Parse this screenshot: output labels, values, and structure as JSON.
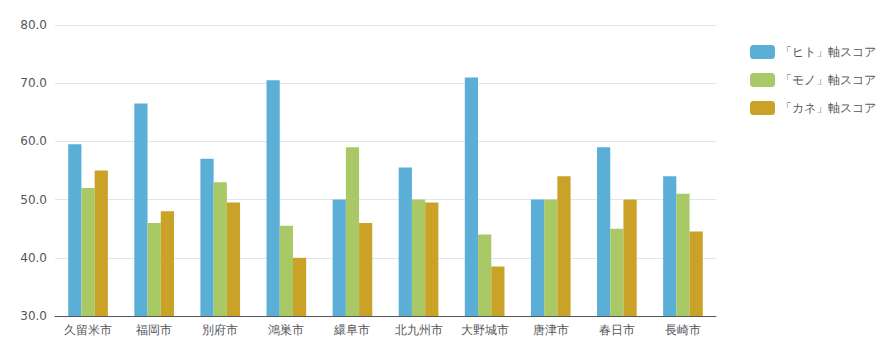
{
  "chart_data": {
    "type": "bar",
    "categories": [
      "久留米市",
      "福岡市",
      "別府市",
      "鴻巣市",
      "繯阜市",
      "北九州市",
      "大野城市",
      "唐津市",
      "春日市",
      "長崎市"
    ],
    "series": [
      {
        "name": "「ヒト」軸スコア",
        "color": "#5bafd6",
        "values": [
          59.5,
          66.5,
          57.0,
          70.5,
          50.0,
          55.5,
          71.0,
          50.0,
          59.0,
          54.0
        ]
      },
      {
        "name": "「モノ」軸スコア",
        "color": "#a8c966",
        "values": [
          52.0,
          46.0,
          53.0,
          45.5,
          59.0,
          50.0,
          44.0,
          50.0,
          45.0,
          51.0
        ]
      },
      {
        "name": "「カネ」軸スコア",
        "color": "#c9a227",
        "values": [
          55.0,
          48.0,
          49.5,
          40.0,
          46.0,
          49.5,
          38.5,
          54.0,
          50.0,
          44.5
        ]
      }
    ],
    "ylim": [
      30,
      80
    ],
    "yticks": [
      {
        "value": 30,
        "label": "30.0"
      },
      {
        "value": 40,
        "label": "40.0"
      },
      {
        "value": 50,
        "label": "50.0"
      },
      {
        "value": 60,
        "label": "60.0"
      },
      {
        "value": 70,
        "label": "70.0"
      },
      {
        "value": 80,
        "label": "80.0"
      }
    ],
    "grid": true,
    "legend": "right"
  }
}
